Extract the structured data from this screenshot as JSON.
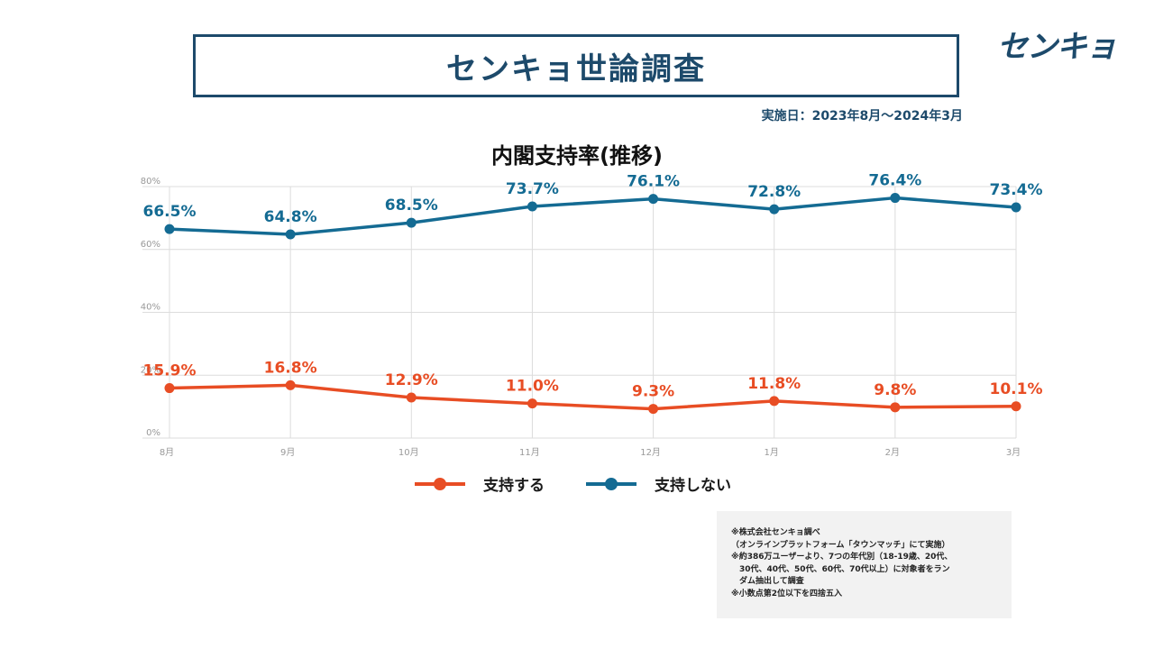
{
  "header": {
    "title": "センキョ世論調査",
    "logo_text": "センキョ",
    "period": "実施日：2023年8月～2024年3月"
  },
  "notes": [
    "※株式会社センキョ調べ",
    "（オンラインプラットフォーム「タウンマッチ」にて実施）",
    "※約386万ユーザーより、7つの年代別（18-19歳、20代、",
    "　30代、40代、50代、60代、70代以上）に対象者をラン",
    "　ダム抽出して調査",
    "※小数点第2位以下を四捨五入"
  ],
  "chart_data": {
    "type": "line",
    "title": "内閣支持率(推移)",
    "categories": [
      "8月",
      "9月",
      "10月",
      "11月",
      "12月",
      "1月",
      "2月",
      "3月"
    ],
    "ylim": [
      0,
      80
    ],
    "yticks": [
      "0%",
      "20%",
      "40%",
      "60%",
      "80%"
    ],
    "grid": true,
    "legend_position": "bottom",
    "series": [
      {
        "name": "支持する",
        "color": "#e84d24",
        "values": [
          15.9,
          16.8,
          12.9,
          11.0,
          9.3,
          11.8,
          9.8,
          10.1
        ],
        "labels": [
          "15.9%",
          "16.8%",
          "12.9%",
          "11.0%",
          "9.3%",
          "11.8%",
          "9.8%",
          "10.1%"
        ]
      },
      {
        "name": "支持しない",
        "color": "#146b93",
        "values": [
          66.5,
          64.8,
          68.5,
          73.7,
          76.1,
          72.8,
          76.4,
          73.4
        ],
        "labels": [
          "66.5%",
          "64.8%",
          "68.5%",
          "73.7%",
          "76.1%",
          "72.8%",
          "76.4%",
          "73.4%"
        ]
      }
    ]
  }
}
